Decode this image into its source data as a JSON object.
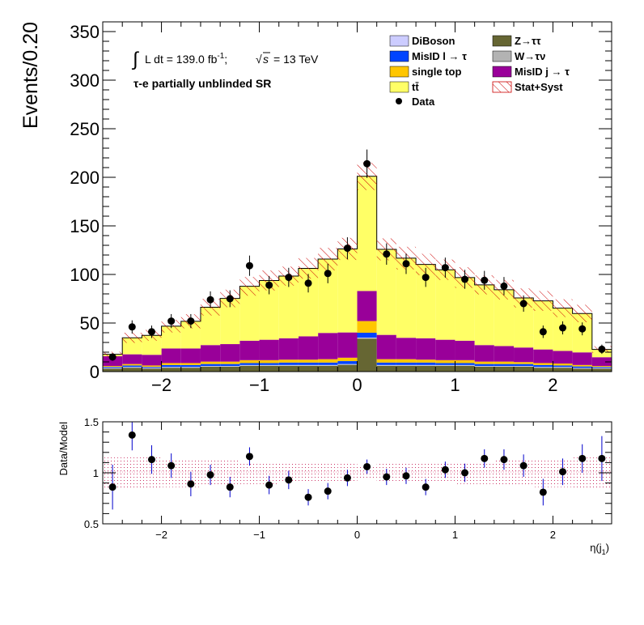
{
  "chart_data": [
    {
      "type": "stacked-histogram",
      "title": "",
      "annotations": {
        "lumi_prefix": "L dt = 139.0 fb",
        "lumi_exp": "-1",
        "sqrt_s": "s",
        "energy": "= 13 TeV",
        "region": "τ-e partially unblinded SR",
        "sqrt_symbol": "√"
      },
      "ylabel": "Events/0.20",
      "xlabel": "η(j",
      "xlabel_sub": "1",
      "xlim": [
        -2.6,
        2.6
      ],
      "ylim": [
        0,
        360
      ],
      "xticks": [
        -2,
        -1,
        0,
        1,
        2
      ],
      "xtick_labels": [
        "−2",
        "−1",
        "0",
        "1",
        "2"
      ],
      "yticks": [
        0,
        50,
        100,
        150,
        200,
        250,
        300,
        350
      ],
      "ytick_labels": [
        "0",
        "50",
        "100",
        "150",
        "200",
        "250",
        "300",
        "350"
      ],
      "bin_edges": [
        -2.6,
        -2.4,
        -2.2,
        -2.0,
        -1.8,
        -1.6,
        -1.4,
        -1.2,
        -1.0,
        -0.8,
        -0.6,
        -0.4,
        -0.2,
        0.0,
        0.2,
        0.4,
        0.6,
        0.8,
        1.0,
        1.2,
        1.4,
        1.6,
        1.8,
        2.0,
        2.2,
        2.4,
        2.6
      ],
      "series": [
        {
          "name": "Z→ττ",
          "color": "#666633",
          "values": [
            3,
            4,
            3,
            4,
            4,
            5,
            5,
            6,
            6,
            6,
            6,
            6,
            7,
            34,
            6,
            6,
            6,
            6,
            6,
            5,
            5,
            5,
            4,
            4,
            3,
            3
          ]
        },
        {
          "name": "W→τν",
          "color": "#b3b3b3",
          "values": [
            0.3,
            0.3,
            0.3,
            0.3,
            0.3,
            0.3,
            0.3,
            0.3,
            0.3,
            0.3,
            0.3,
            0.3,
            0.3,
            0.5,
            0.3,
            0.3,
            0.3,
            0.3,
            0.3,
            0.3,
            0.3,
            0.3,
            0.3,
            0.3,
            0.3,
            0.3
          ]
        },
        {
          "name": "DiBoson",
          "color": "#ccccff",
          "values": [
            0.5,
            0.5,
            0.5,
            0.5,
            0.5,
            0.5,
            0.5,
            0.5,
            0.5,
            0.5,
            0.5,
            0.5,
            0.5,
            0.5,
            0.5,
            0.5,
            0.5,
            0.5,
            0.5,
            0.5,
            0.5,
            0.5,
            0.5,
            0.5,
            0.5,
            0.5
          ]
        },
        {
          "name": "MisID l → τ",
          "color": "#0044ff",
          "values": [
            1,
            1.5,
            1,
            2,
            2,
            2,
            2,
            2,
            2,
            2.5,
            2.5,
            2.5,
            3,
            5,
            2.5,
            2.5,
            2.5,
            2,
            2,
            2,
            2,
            2,
            2,
            1.5,
            1.5,
            1
          ]
        },
        {
          "name": "single top",
          "color": "#ffc600",
          "values": [
            1,
            1.5,
            1.5,
            2,
            2,
            2.5,
            2.5,
            3,
            3,
            3,
            3,
            3.5,
            3.5,
            12,
            3.5,
            3.5,
            3,
            3,
            3,
            2.5,
            2.5,
            2,
            2,
            2,
            1.5,
            1
          ]
        },
        {
          "name": "MisID j → τ",
          "color": "#990099",
          "values": [
            10,
            10,
            11,
            15,
            15,
            17,
            18,
            20,
            21,
            22,
            24,
            27,
            26,
            31,
            25,
            22,
            22,
            21,
            20,
            17,
            16,
            15,
            14,
            13,
            13,
            9
          ]
        },
        {
          "name": "tt̄",
          "color": "#ffff66",
          "values": [
            2,
            17,
            20,
            23,
            28,
            39,
            47,
            56,
            61,
            64,
            70,
            76,
            86,
            118,
            88,
            82,
            76,
            72,
            65,
            62,
            58,
            51,
            50,
            44,
            40,
            8
          ]
        }
      ],
      "stat_syst_label": "Stat+Syst",
      "data_label": "Data",
      "data": {
        "x": [
          -2.5,
          -2.3,
          -2.1,
          -1.9,
          -1.7,
          -1.5,
          -1.3,
          -1.1,
          -0.9,
          -0.7,
          -0.5,
          -0.3,
          -0.1,
          0.1,
          0.3,
          0.5,
          0.7,
          0.9,
          1.1,
          1.3,
          1.5,
          1.7,
          1.9,
          2.1,
          2.3,
          2.5
        ],
        "y": [
          15,
          46,
          41,
          52,
          52,
          74,
          75,
          109,
          89,
          97,
          91,
          101,
          127,
          214,
          121,
          111,
          97,
          107,
          95,
          94,
          88,
          70,
          41,
          45,
          44,
          23
        ]
      }
    },
    {
      "type": "ratio",
      "ylabel": "Data/Model",
      "xlim": [
        -2.6,
        2.6
      ],
      "ylim": [
        0.5,
        1.5
      ],
      "yticks": [
        0.5,
        1,
        1.5
      ],
      "ytick_labels": [
        "0.5",
        "1",
        "1.5"
      ],
      "xticks": [
        -2,
        -1,
        0,
        1,
        2
      ],
      "xtick_labels": [
        "−2",
        "−1",
        "0",
        "1",
        "2"
      ],
      "band_halfwidth": [
        0.15,
        0.15,
        0.15,
        0.14,
        0.14,
        0.13,
        0.12,
        0.11,
        0.11,
        0.1,
        0.1,
        0.1,
        0.09,
        0.07,
        0.09,
        0.1,
        0.1,
        0.1,
        0.11,
        0.11,
        0.12,
        0.13,
        0.14,
        0.14,
        0.15,
        0.15
      ],
      "ratio": {
        "x": [
          -2.5,
          -2.3,
          -2.1,
          -1.9,
          -1.7,
          -1.5,
          -1.3,
          -1.1,
          -0.9,
          -0.7,
          -0.5,
          -0.3,
          -0.1,
          0.1,
          0.3,
          0.5,
          0.7,
          0.9,
          1.1,
          1.3,
          1.5,
          1.7,
          1.9,
          2.1,
          2.3,
          2.5
        ],
        "y": [
          0.86,
          1.37,
          1.13,
          1.07,
          0.89,
          0.98,
          0.86,
          1.16,
          0.88,
          0.93,
          0.76,
          0.82,
          0.95,
          1.06,
          0.96,
          0.97,
          0.86,
          1.03,
          1.0,
          1.14,
          1.13,
          1.07,
          0.81,
          1.01,
          1.14,
          1.14
        ],
        "err": [
          0.22,
          0.15,
          0.14,
          0.12,
          0.12,
          0.1,
          0.1,
          0.09,
          0.09,
          0.09,
          0.08,
          0.08,
          0.08,
          0.07,
          0.08,
          0.08,
          0.08,
          0.08,
          0.09,
          0.09,
          0.1,
          0.11,
          0.13,
          0.13,
          0.14,
          0.22
        ]
      }
    }
  ],
  "colors": {
    "frame": "#000000",
    "hatch": "#cc0000",
    "data_marker": "#000000",
    "error_bar": "#0000cc"
  }
}
